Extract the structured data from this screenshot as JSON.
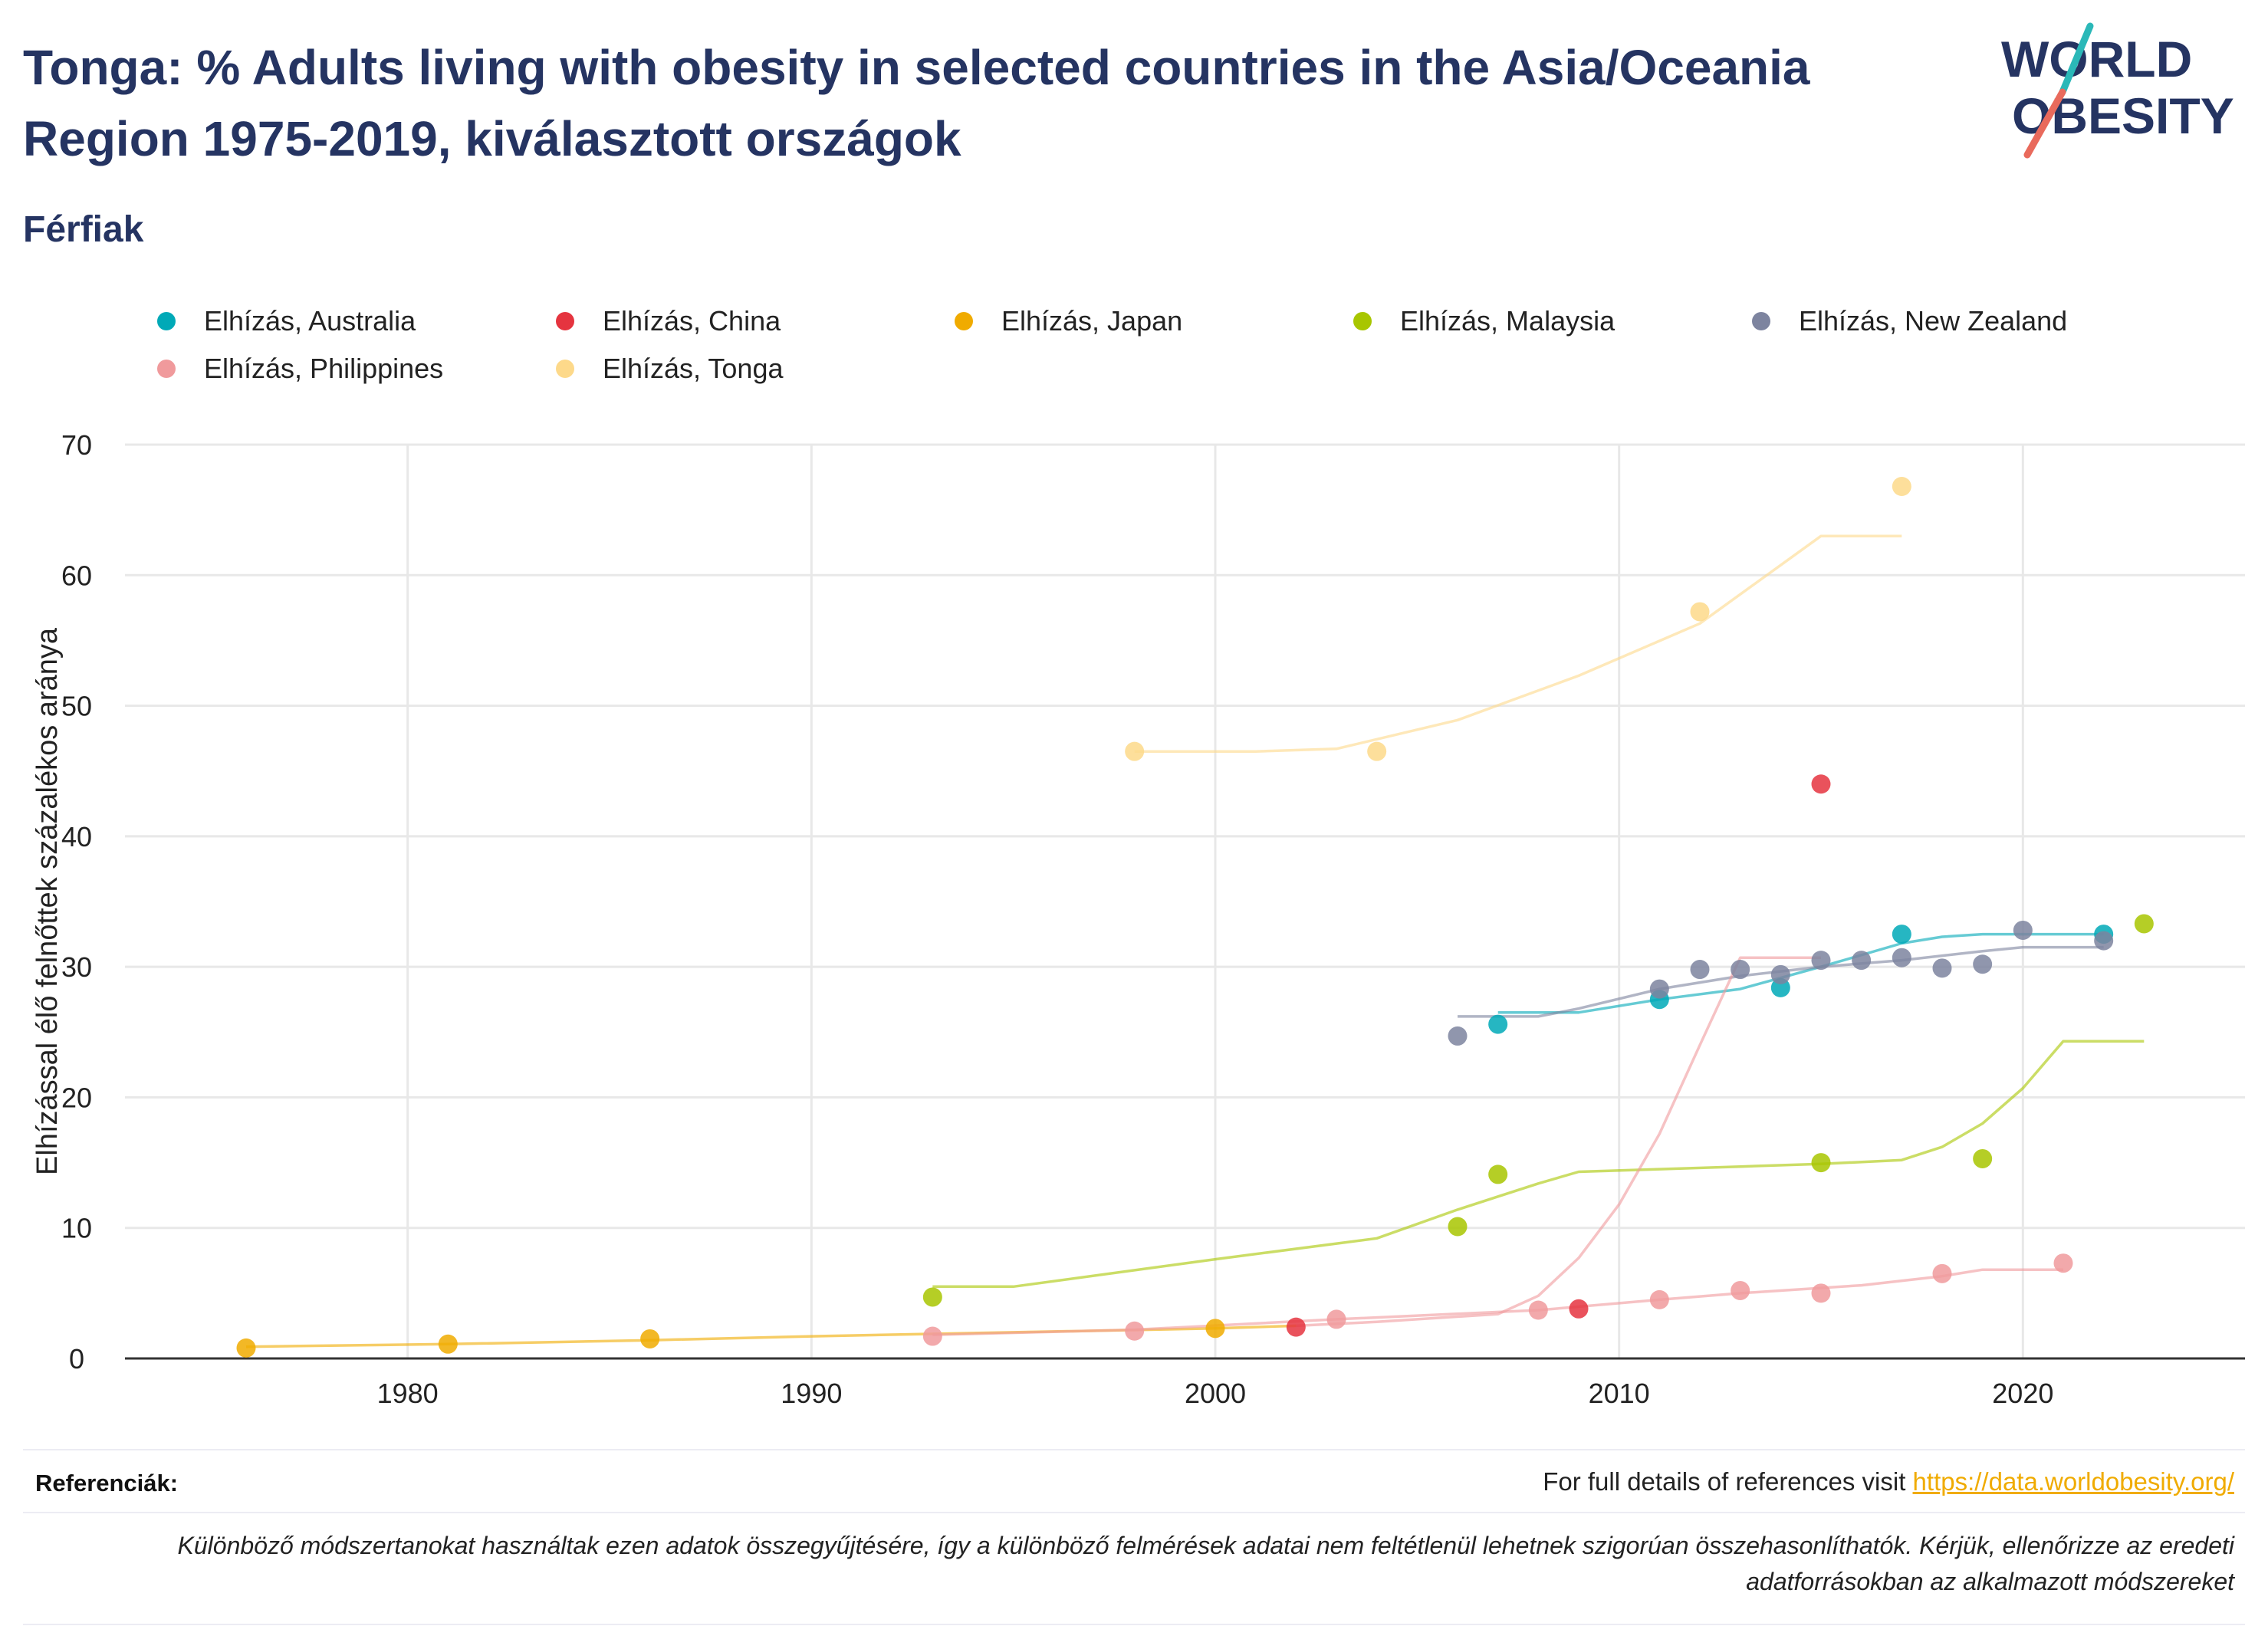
{
  "title": "Tonga: % Adults living with obesity in selected countries in the Asia/Oceania Region 1975-2019, kiválasztott országok",
  "subtitle": "Férfiak",
  "logo": {
    "line1": "WORLD",
    "line2": "OBESITY",
    "colors": {
      "text": "#253462",
      "slash_top": "#2bb8b8",
      "slash_bottom": "#e96a5c"
    }
  },
  "footer": {
    "references_label": "Referenciák:",
    "references_text": "For full details of references visit ",
    "references_link": "https://data.worldobesity.org/",
    "note": "Különböző módszertanokat használtak ezen adatok összegyűjtésére, így a különböző felmérések adatai nem feltétlenül lehetnek szigorúan összehasonlíthatók. Kérjük, ellenőrizze az eredeti adatforrásokban az alkalmazott módszereket"
  },
  "chart_data": {
    "type": "scatter",
    "title": "Tonga: % Adults living with obesity in selected countries in the Asia/Oceania Region 1975-2019, kiválasztott országok",
    "subtitle": "Férfiak",
    "xlabel": "",
    "ylabel": "Elhízással élő felnőttek százalékos aránya",
    "xlim": [
      1973,
      2025.5
    ],
    "ylim": [
      0,
      70
    ],
    "x_ticks": [
      1980,
      1990,
      2000,
      2010,
      2020
    ],
    "y_ticks": [
      0,
      10,
      20,
      30,
      40,
      50,
      60,
      70
    ],
    "grid": true,
    "legend_position": "top",
    "series": [
      {
        "name": "Elhízás, Australia",
        "color": "#00a9b7",
        "points": [
          [
            2007,
            25.6
          ],
          [
            2011,
            27.5
          ],
          [
            2014,
            28.4
          ],
          [
            2017,
            32.5
          ],
          [
            2022,
            32.5
          ]
        ],
        "trend": [
          [
            2007,
            26.5
          ],
          [
            2009,
            26.5
          ],
          [
            2011,
            27.5
          ],
          [
            2013,
            28.3
          ],
          [
            2015,
            30.0
          ],
          [
            2017,
            31.8
          ],
          [
            2018,
            32.3
          ],
          [
            2019,
            32.5
          ],
          [
            2022,
            32.5
          ]
        ]
      },
      {
        "name": "Elhízás, China",
        "color": "#e5343f",
        "points": [
          [
            2002,
            2.4
          ],
          [
            2009,
            3.8
          ],
          [
            2015,
            44.0
          ]
        ],
        "trend": []
      },
      {
        "name": "Elhízás, Japan",
        "color": "#f0ab00",
        "points": [
          [
            1976,
            0.8
          ],
          [
            1981,
            1.1
          ],
          [
            1986,
            1.5
          ],
          [
            2000,
            2.3
          ]
        ],
        "trend": [
          [
            1976,
            0.9
          ],
          [
            1981,
            1.1
          ],
          [
            1986,
            1.4
          ],
          [
            1990,
            1.7
          ],
          [
            1995,
            2.0
          ],
          [
            2000,
            2.3
          ]
        ]
      },
      {
        "name": "Elhízás, Malaysia",
        "color": "#a8c600",
        "points": [
          [
            1993,
            4.7
          ],
          [
            2006,
            10.1
          ],
          [
            2007,
            14.1
          ],
          [
            2015,
            15.0
          ],
          [
            2019,
            15.3
          ],
          [
            2023,
            33.3
          ]
        ],
        "trend": [
          [
            1993,
            5.5
          ],
          [
            1995,
            5.5
          ],
          [
            2000,
            7.6
          ],
          [
            2004,
            9.2
          ],
          [
            2006,
            11.4
          ],
          [
            2007,
            12.4
          ],
          [
            2008,
            13.4
          ],
          [
            2009,
            14.3
          ],
          [
            2011,
            14.5
          ],
          [
            2013,
            14.7
          ],
          [
            2015,
            14.9
          ],
          [
            2017,
            15.2
          ],
          [
            2018,
            16.2
          ],
          [
            2019,
            18.0
          ],
          [
            2020,
            20.7
          ],
          [
            2021,
            24.3
          ],
          [
            2023,
            24.3
          ]
        ]
      },
      {
        "name": "Elhízás, New Zealand",
        "color": "#7d849f",
        "points": [
          [
            2006,
            24.7
          ],
          [
            2011,
            28.3
          ],
          [
            2012,
            29.8
          ],
          [
            2013,
            29.8
          ],
          [
            2014,
            29.4
          ],
          [
            2015,
            30.5
          ],
          [
            2016,
            30.5
          ],
          [
            2017,
            30.7
          ],
          [
            2018,
            29.9
          ],
          [
            2019,
            30.2
          ],
          [
            2020,
            32.8
          ],
          [
            2022,
            32.0
          ]
        ],
        "trend": [
          [
            2006,
            26.2
          ],
          [
            2008,
            26.2
          ],
          [
            2009,
            26.8
          ],
          [
            2011,
            28.3
          ],
          [
            2013,
            29.3
          ],
          [
            2015,
            30.0
          ],
          [
            2017,
            30.5
          ],
          [
            2019,
            31.2
          ],
          [
            2020,
            31.5
          ],
          [
            2022,
            31.5
          ]
        ]
      },
      {
        "name": "Elhízás, Philippines",
        "color": "#f09a9c",
        "points": [
          [
            1993,
            1.7
          ],
          [
            1998,
            2.1
          ],
          [
            2003,
            3.0
          ],
          [
            2008,
            3.7
          ],
          [
            2011,
            4.5
          ],
          [
            2013,
            5.2
          ],
          [
            2015,
            5.0
          ],
          [
            2018,
            6.5
          ],
          [
            2021,
            7.3
          ]
        ],
        "trend": [
          [
            1993,
            1.8
          ],
          [
            1998,
            2.2
          ],
          [
            2003,
            3.0
          ],
          [
            2008,
            3.7
          ],
          [
            2011,
            4.5
          ],
          [
            2013,
            5.0
          ],
          [
            2016,
            5.6
          ],
          [
            2018,
            6.3
          ],
          [
            2019,
            6.8
          ],
          [
            2021,
            6.8
          ]
        ]
      },
      {
        "name": "Elhízás, Tonga",
        "color": "#fdd98a",
        "points": [
          [
            1998,
            46.5
          ],
          [
            2004,
            46.5
          ],
          [
            2012,
            57.2
          ],
          [
            2017,
            66.8
          ]
        ],
        "trend": [
          [
            1998,
            46.5
          ],
          [
            2001,
            46.5
          ],
          [
            2003,
            46.7
          ],
          [
            2006,
            48.9
          ],
          [
            2009,
            52.3
          ],
          [
            2012,
            56.3
          ],
          [
            2015,
            63.0
          ],
          [
            2017,
            63.0
          ]
        ]
      }
    ],
    "extra_lines": [
      {
        "color": "#f09a9c",
        "points": [
          [
            2002,
            2.5
          ],
          [
            2004,
            2.8
          ],
          [
            2007,
            3.4
          ],
          [
            2008,
            4.8
          ],
          [
            2009,
            7.7
          ],
          [
            2010,
            11.8
          ],
          [
            2011,
            17.2
          ],
          [
            2012,
            24.0
          ],
          [
            2013,
            30.7
          ],
          [
            2015,
            30.7
          ]
        ]
      },
      {
        "color": "#f0ab00",
        "points": [
          [
            2000,
            2.3
          ],
          [
            2002,
            2.5
          ]
        ]
      }
    ]
  }
}
